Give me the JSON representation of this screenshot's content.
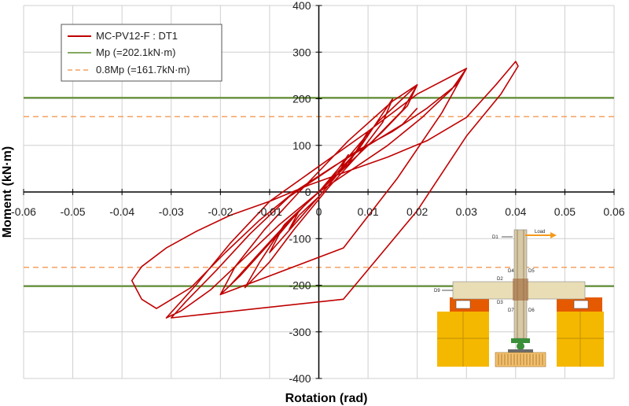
{
  "chart_data": {
    "type": "line",
    "title": "",
    "xlabel": "Rotation (rad)",
    "ylabel": "Moment (kN·m)",
    "xlim": [
      -0.06,
      0.06
    ],
    "ylim": [
      -400,
      400
    ],
    "xticks": [
      -0.06,
      -0.05,
      -0.04,
      -0.03,
      -0.02,
      -0.01,
      0,
      0.01,
      0.02,
      0.03,
      0.04,
      0.05,
      0.06
    ],
    "xtick_labels": [
      "-0.06",
      "-0.05",
      "-0.04",
      "-0.03",
      "-0.02",
      "-0.01",
      "0",
      "0.01",
      "0.02",
      "0.03",
      "0.04",
      "0.05",
      "0.06"
    ],
    "yticks": [
      -400,
      -300,
      -200,
      -100,
      0,
      100,
      200,
      300,
      400
    ],
    "ytick_labels": [
      "-400",
      "-300",
      "-200",
      "-100",
      "0",
      "100",
      "200",
      "300",
      "400"
    ],
    "grid": true,
    "legend_position": "top-left",
    "series": [
      {
        "name": "MC-PV12-F : DT1",
        "color": "#C00000",
        "style": "solid",
        "x": [
          0,
          0.004,
          0.006,
          0.004,
          0,
          -0.004,
          -0.006,
          -0.004,
          0,
          0.006,
          0.01,
          0.008,
          0.004,
          0,
          -0.005,
          -0.01,
          -0.008,
          -0.004,
          0,
          0.008,
          0.015,
          0.013,
          0.008,
          0.002,
          -0.005,
          -0.01,
          -0.015,
          -0.012,
          -0.007,
          0,
          0.012,
          0.02,
          0.017,
          0.011,
          0.005,
          -0.003,
          -0.01,
          -0.016,
          -0.02,
          -0.017,
          -0.011,
          -0.004,
          0.006,
          0.015,
          0.02,
          0.018,
          0.013,
          0.008,
          0.003,
          -0.005,
          -0.012,
          -0.018,
          -0.02,
          0.005,
          0.016,
          0.025,
          0.03,
          0.027,
          0.021,
          0.014,
          0.007,
          0,
          -0.008,
          -0.016,
          -0.022,
          -0.028,
          -0.031,
          -0.025,
          -0.018,
          -0.01,
          -0.002,
          0.01,
          0.02,
          0.03,
          0.028,
          0.022,
          0.015,
          0.008,
          0.001,
          -0.006,
          -0.014,
          -0.021,
          -0.027,
          -0.03,
          0.005,
          0.02,
          0.03,
          0.037,
          0.0405,
          0.04,
          0.036,
          0.03,
          0.022,
          0.014,
          0.006,
          -0.002,
          -0.01,
          -0.018,
          -0.025,
          -0.031,
          -0.036,
          -0.038,
          -0.037,
          -0.036,
          -0.033,
          -0.026,
          -0.019,
          -0.012,
          -0.005,
          0.003,
          0.01,
          0.017,
          0.02
        ],
        "y": [
          0,
          50,
          80,
          40,
          -10,
          -50,
          -80,
          -40,
          0,
          60,
          130,
          90,
          40,
          -10,
          -70,
          -130,
          -90,
          -40,
          0,
          90,
          200,
          150,
          80,
          10,
          -80,
          -150,
          -205,
          -150,
          -70,
          0,
          150,
          230,
          175,
          110,
          50,
          -30,
          -110,
          -180,
          -220,
          -160,
          -80,
          0,
          110,
          195,
          230,
          185,
          130,
          80,
          30,
          -50,
          -130,
          -200,
          -220,
          -120,
          30,
          170,
          265,
          220,
          160,
          100,
          50,
          0,
          -70,
          -150,
          -210,
          -255,
          -270,
          -200,
          -110,
          -20,
          40,
          130,
          210,
          265,
          230,
          180,
          130,
          90,
          40,
          -10,
          -90,
          -170,
          -235,
          -270,
          -230,
          -40,
          120,
          210,
          270,
          280,
          230,
          160,
          110,
          75,
          45,
          15,
          -20,
          -50,
          -85,
          -120,
          -160,
          -190,
          -210,
          -230,
          -250,
          -205,
          -130,
          -60,
          0,
          55,
          100,
          145,
          180
        ]
      },
      {
        "name": "Mp (=202.1kN·m)",
        "color": "#5B8C2A",
        "style": "solid",
        "values_pos": 202.1,
        "values_neg": -202.1
      },
      {
        "name": "0.8Mp (=161.7kN·m)",
        "color": "#F4A261",
        "style": "dashed",
        "values_pos": 161.7,
        "values_neg": -161.7
      }
    ]
  },
  "inset": {
    "labels": [
      "D1",
      "Load",
      "D4",
      "D5",
      "D2",
      "D9",
      "D3",
      "D7",
      "D6"
    ],
    "colors": {
      "column": "#D7C9A6",
      "beam": "#E8DDB5",
      "support_top": "#E55A00",
      "support_block": "#F5B800",
      "support_grid": "#C89600",
      "base_plate": "#3A8F3A",
      "foundation": "#F2C06C",
      "load_arrow": "#F59A1A"
    }
  }
}
